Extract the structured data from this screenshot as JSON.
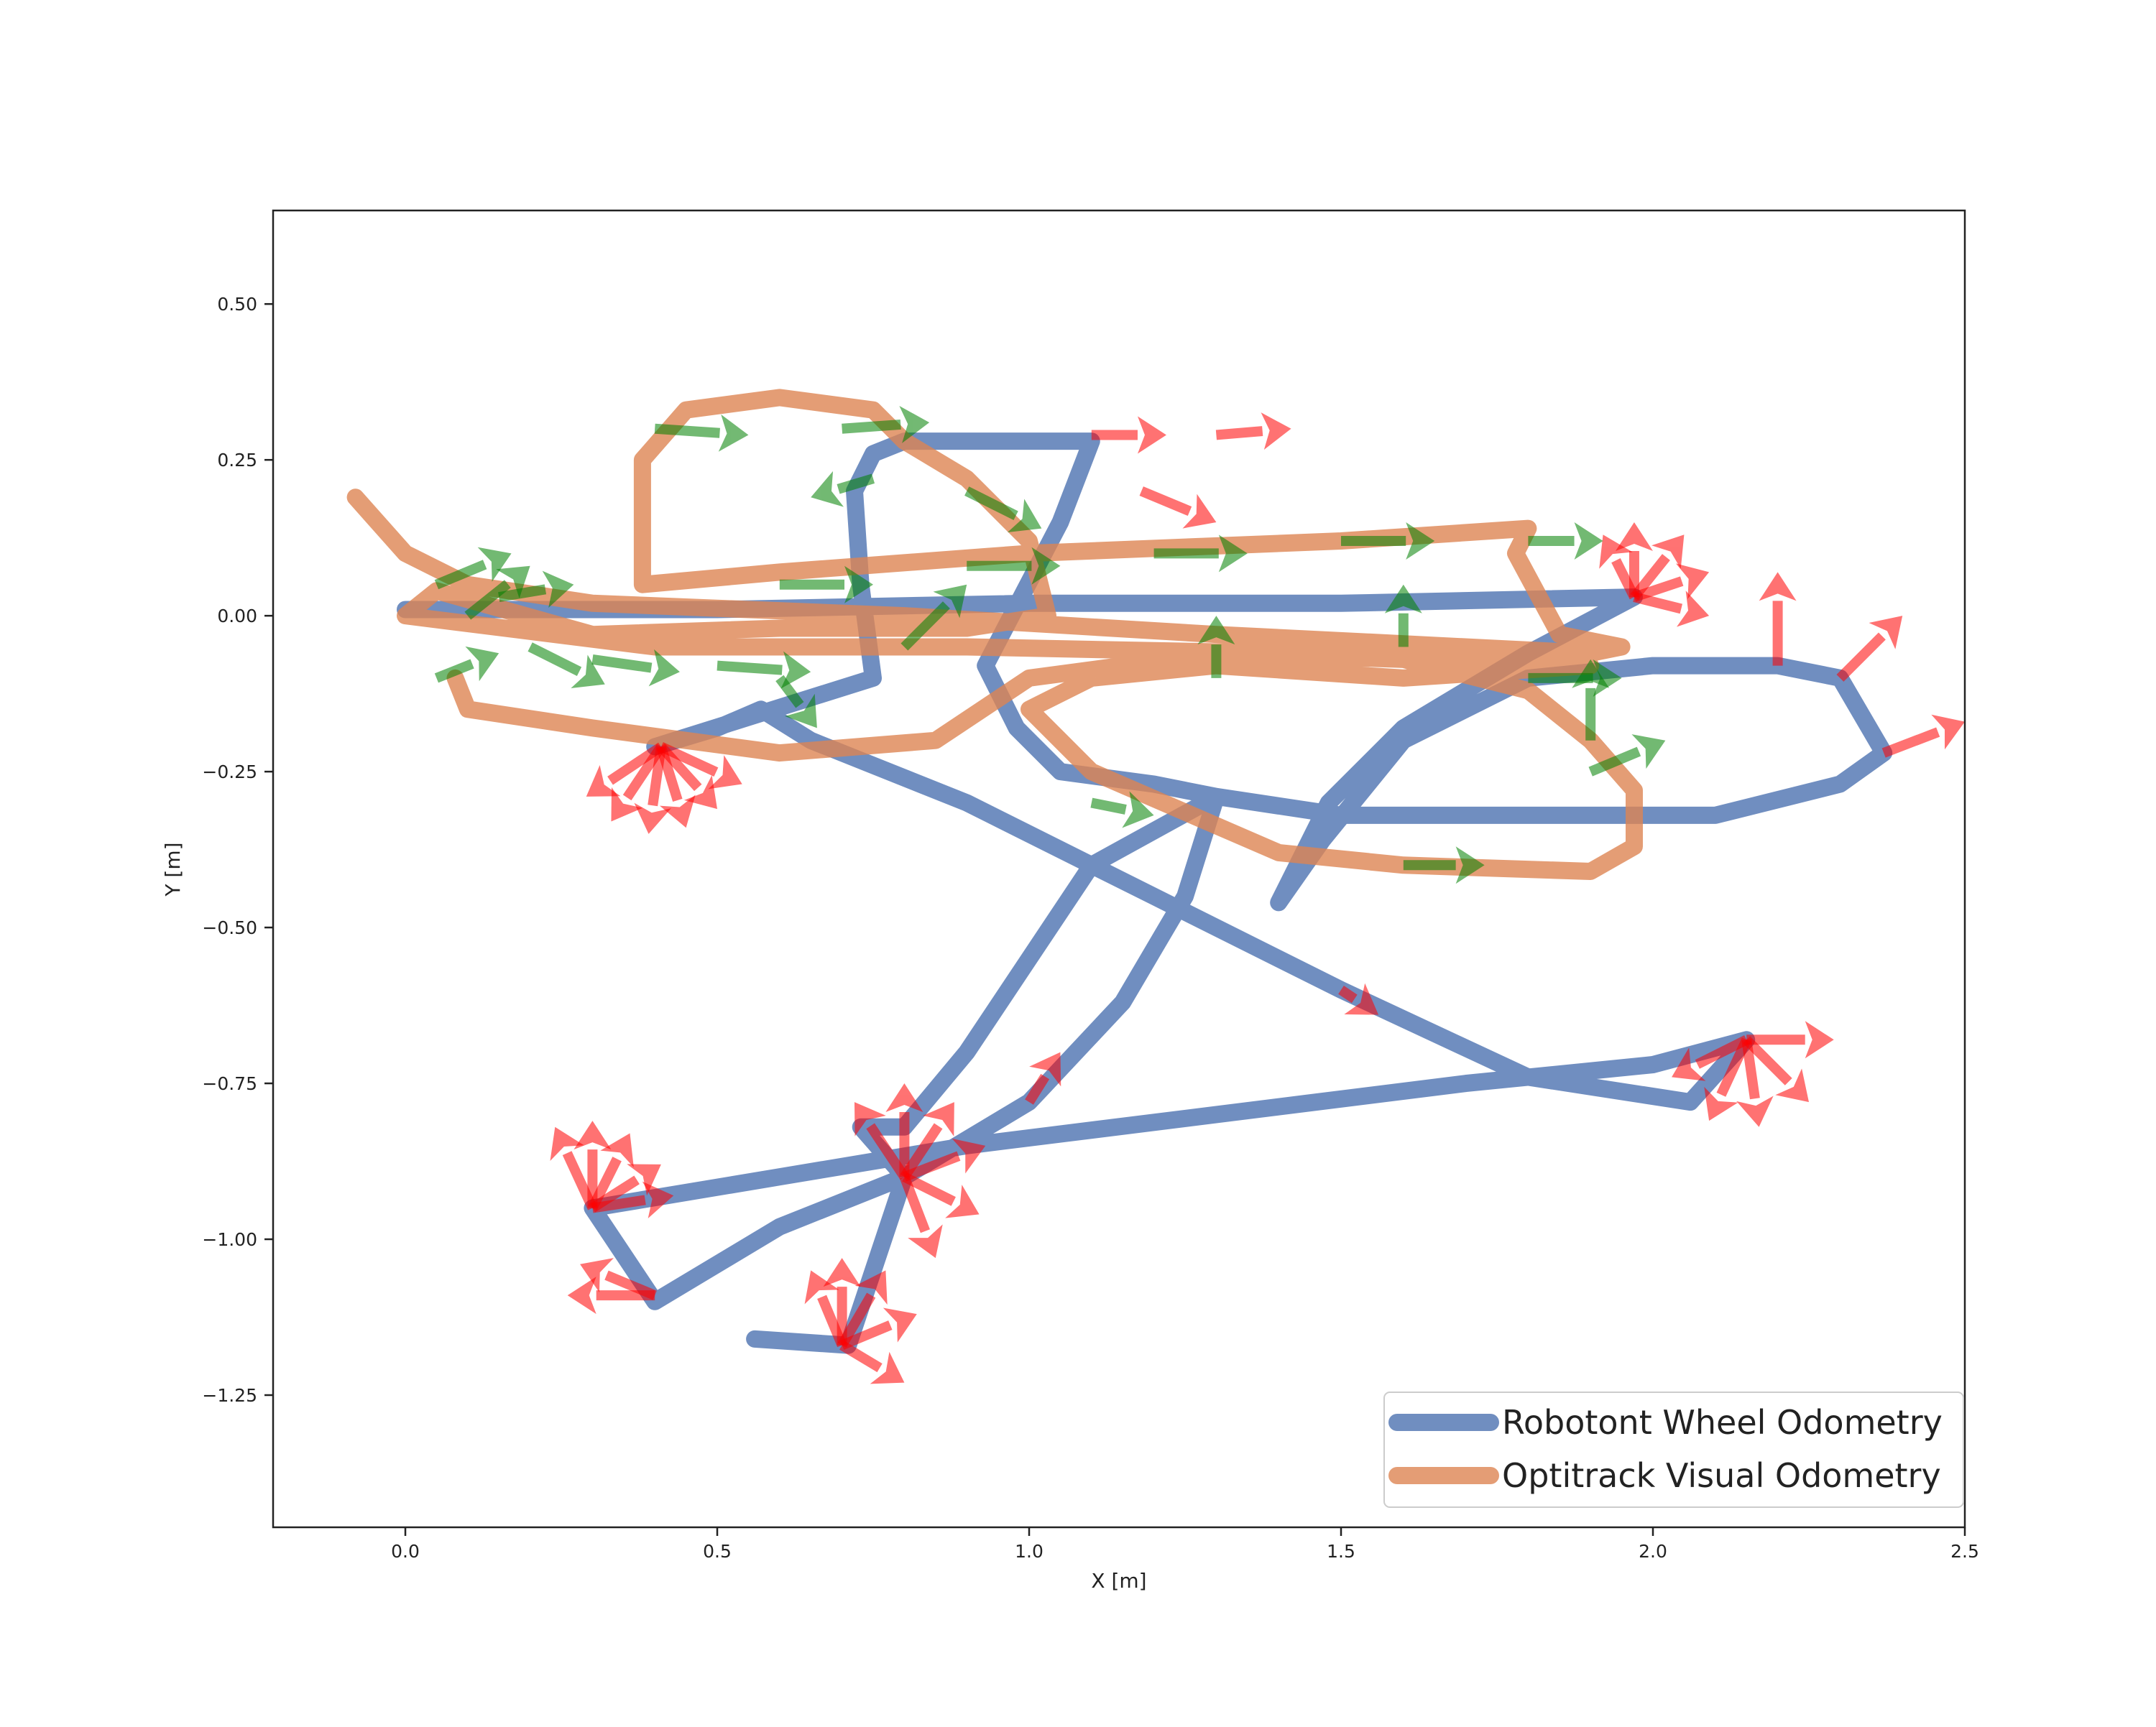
{
  "chart_data": {
    "type": "line",
    "x_label": "X [m]",
    "y_label": "Y [m]",
    "xlim": [
      -0.212,
      2.5
    ],
    "ylim": [
      -1.462,
      0.65
    ],
    "xticks": [
      {
        "value": 0,
        "label": "0.0"
      },
      0.5,
      {
        "value": 1,
        "label": "1.0"
      },
      1.5,
      {
        "value": 2,
        "label": "2.0"
      },
      2.5
    ],
    "yticks": [
      {
        "value": 0.5,
        "label": "0.50"
      },
      0.25,
      {
        "value": 0,
        "label": "0.00"
      },
      {
        "value": -0.25,
        "label": "−0.25"
      },
      {
        "value": -0.5,
        "label": "−0.50"
      },
      {
        "value": -0.75,
        "label": "−0.75"
      },
      {
        "value": -1,
        "label": "−1.00"
      },
      {
        "value": -1.25,
        "label": "−1.25"
      }
    ],
    "legend": "lower right",
    "series": [
      {
        "name": "Robotont Wheel Odometry",
        "color": "#4c72b0",
        "x": [
          0.0,
          0.5,
          1.0,
          1.5,
          1.97,
          1.8,
          1.6,
          1.48,
          1.4,
          1.47,
          1.6,
          1.8,
          2.0,
          2.2,
          2.3,
          2.37,
          2.3,
          2.1,
          1.8,
          1.5,
          1.3,
          1.25,
          1.15,
          1.0,
          0.8,
          0.6,
          0.4,
          0.3,
          0.6,
          0.9,
          1.3,
          1.7,
          2.0,
          2.15,
          2.06,
          1.8,
          1.5,
          1.2,
          0.9,
          0.65,
          0.57,
          0.5,
          0.4,
          0.75,
          0.73,
          0.72,
          0.75,
          0.8,
          1.1,
          1.05,
          0.93,
          0.98,
          1.05,
          1.2,
          1.3,
          1.1,
          1.0,
          0.9,
          0.8,
          0.73,
          0.8,
          0.71,
          0.56
        ],
        "y": [
          0.01,
          0.01,
          0.02,
          0.02,
          0.03,
          -0.06,
          -0.18,
          -0.3,
          -0.46,
          -0.36,
          -0.2,
          -0.1,
          -0.08,
          -0.08,
          -0.1,
          -0.22,
          -0.27,
          -0.32,
          -0.32,
          -0.32,
          -0.29,
          -0.45,
          -0.62,
          -0.78,
          -0.9,
          -0.98,
          -1.1,
          -0.95,
          -0.9,
          -0.85,
          -0.8,
          -0.75,
          -0.72,
          -0.68,
          -0.78,
          -0.74,
          -0.6,
          -0.45,
          -0.3,
          -0.2,
          -0.15,
          -0.18,
          -0.21,
          -0.1,
          0.05,
          0.2,
          0.26,
          0.28,
          0.28,
          0.15,
          -0.08,
          -0.18,
          -0.25,
          -0.27,
          -0.29,
          -0.4,
          -0.55,
          -0.7,
          -0.82,
          -0.82,
          -0.9,
          -1.17,
          -1.16
        ]
      },
      {
        "name": "Optitrack Visual Odometry",
        "color": "#dd8452",
        "x": [
          -0.08,
          0.0,
          0.1,
          0.3,
          0.8,
          1.3,
          1.9,
          1.95,
          1.85,
          1.78,
          1.8,
          1.5,
          1.0,
          0.6,
          0.38,
          0.38,
          0.45,
          0.6,
          0.75,
          0.8,
          0.9,
          1.0,
          1.03,
          0.9,
          0.6,
          0.3,
          0.05,
          0.0,
          0.4,
          0.9,
          1.4,
          1.9,
          1.6,
          1.3,
          1.1,
          1.0,
          1.1,
          1.4,
          1.6,
          1.9,
          1.97,
          1.97,
          1.9,
          1.8,
          1.6,
          1.3,
          1.0,
          0.85,
          0.6,
          0.3,
          0.1,
          0.08
        ],
        "y": [
          0.19,
          0.1,
          0.05,
          0.02,
          0.0,
          -0.03,
          -0.06,
          -0.05,
          -0.03,
          0.1,
          0.14,
          0.12,
          0.1,
          0.07,
          0.05,
          0.25,
          0.33,
          0.35,
          0.33,
          0.28,
          0.22,
          0.12,
          0.0,
          -0.02,
          -0.02,
          -0.03,
          0.04,
          0.0,
          -0.05,
          -0.05,
          -0.06,
          -0.08,
          -0.1,
          -0.08,
          -0.1,
          -0.15,
          -0.25,
          -0.38,
          -0.4,
          -0.41,
          -0.37,
          -0.28,
          -0.2,
          -0.12,
          -0.07,
          -0.06,
          -0.1,
          -0.2,
          -0.22,
          -0.18,
          -0.15,
          -0.1
        ]
      }
    ],
    "quivers": [
      {
        "color": "#ff0000",
        "x": [
          0.41,
          0.41,
          0.41,
          0.41,
          0.41,
          0.41,
          0.3,
          0.3,
          0.3,
          0.3,
          0.3,
          0.4,
          0.4,
          0.7,
          0.7,
          0.7,
          0.7,
          0.7,
          0.8,
          0.8,
          0.8,
          0.8,
          0.8,
          0.8,
          2.15,
          2.15,
          2.15,
          2.15,
          2.15,
          1.97,
          1.97,
          1.97,
          1.97,
          1.97,
          1.1,
          1.3,
          1.18,
          2.2,
          2.3,
          2.37,
          1.0,
          1.5
        ],
        "y": [
          -0.21,
          -0.21,
          -0.21,
          -0.21,
          -0.21,
          -0.21,
          -0.95,
          -0.95,
          -0.95,
          -0.95,
          -0.95,
          -1.09,
          -1.09,
          -1.17,
          -1.17,
          -1.17,
          -1.17,
          -1.17,
          -0.9,
          -0.9,
          -0.9,
          -0.9,
          -0.9,
          -0.9,
          -0.68,
          -0.68,
          -0.68,
          -0.68,
          -0.68,
          0.03,
          0.03,
          0.03,
          0.03,
          0.03,
          0.29,
          0.29,
          0.2,
          -0.08,
          -0.1,
          -0.22,
          -0.78,
          -0.6
        ],
        "u": [
          -0.12,
          -0.08,
          -0.02,
          0.04,
          0.09,
          0.13,
          -0.06,
          0.0,
          0.06,
          0.11,
          0.13,
          -0.14,
          -0.12,
          -0.05,
          0.0,
          0.07,
          0.12,
          0.1,
          0.0,
          -0.08,
          0.08,
          0.13,
          0.12,
          0.05,
          0.14,
          0.1,
          0.02,
          -0.06,
          -0.12,
          0.0,
          0.08,
          0.12,
          -0.05,
          0.12,
          0.12,
          0.12,
          0.12,
          0.0,
          0.1,
          0.13,
          0.05,
          0.06
        ],
        "v": [
          -0.08,
          -0.12,
          -0.14,
          -0.13,
          -0.1,
          -0.06,
          0.13,
          0.14,
          0.12,
          0.07,
          0.02,
          0.0,
          0.05,
          0.12,
          0.14,
          0.12,
          0.05,
          -0.06,
          0.15,
          0.12,
          0.12,
          0.05,
          -0.06,
          -0.13,
          0.0,
          -0.1,
          -0.14,
          -0.13,
          -0.06,
          0.12,
          0.1,
          0.04,
          0.1,
          -0.03,
          0.0,
          0.01,
          -0.05,
          0.15,
          0.1,
          0.05,
          0.08,
          -0.04
        ]
      },
      {
        "color": "#008000",
        "x": [
          0.4,
          0.7,
          0.75,
          0.05,
          0.1,
          0.15,
          0.05,
          0.2,
          0.3,
          0.5,
          0.6,
          0.9,
          1.2,
          1.5,
          1.8,
          1.6,
          1.8,
          1.9,
          1.9,
          1.6,
          1.3,
          0.8,
          0.9,
          1.1,
          0.6
        ],
        "y": [
          0.3,
          0.3,
          0.22,
          0.05,
          0.0,
          0.03,
          -0.1,
          -0.05,
          -0.07,
          -0.08,
          0.05,
          0.08,
          0.1,
          0.12,
          0.12,
          -0.05,
          -0.1,
          -0.2,
          -0.25,
          -0.4,
          -0.1,
          -0.05,
          0.2,
          -0.3,
          -0.1
        ],
        "u": [
          0.15,
          0.14,
          -0.1,
          0.12,
          0.1,
          0.12,
          0.1,
          0.12,
          0.14,
          0.15,
          0.15,
          0.15,
          0.15,
          0.15,
          0.12,
          0.0,
          0.15,
          0.0,
          0.12,
          0.13,
          0.0,
          0.1,
          0.12,
          0.1,
          0.06
        ],
        "v": [
          -0.01,
          0.01,
          -0.03,
          0.05,
          0.08,
          0.02,
          0.04,
          -0.06,
          -0.02,
          -0.01,
          0.0,
          0.0,
          0.0,
          0.0,
          0.0,
          0.1,
          0.0,
          0.13,
          0.05,
          0.0,
          0.1,
          0.1,
          -0.06,
          -0.02,
          -0.08
        ]
      }
    ]
  }
}
